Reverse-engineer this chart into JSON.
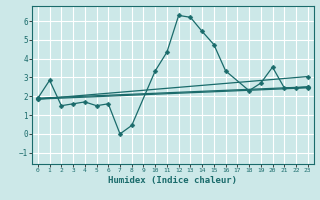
{
  "title": "",
  "xlabel": "Humidex (Indice chaleur)",
  "background_color": "#cce8e8",
  "grid_color": "#ffffff",
  "line_color": "#1a6b6b",
  "xlim": [
    -0.5,
    23.5
  ],
  "ylim": [
    -1.6,
    6.8
  ],
  "xticks": [
    0,
    1,
    2,
    3,
    4,
    5,
    6,
    7,
    8,
    9,
    10,
    11,
    12,
    13,
    14,
    15,
    16,
    17,
    18,
    19,
    20,
    21,
    22,
    23
  ],
  "yticks": [
    -1,
    0,
    1,
    2,
    3,
    4,
    5,
    6
  ],
  "series1_x": [
    0,
    1,
    2,
    3,
    4,
    5,
    6,
    7,
    8,
    10,
    11,
    12,
    13,
    14,
    15,
    16,
    18,
    19,
    20,
    21,
    22,
    23
  ],
  "series1_y": [
    1.9,
    2.85,
    1.5,
    1.6,
    1.7,
    1.5,
    1.6,
    0.0,
    0.45,
    3.35,
    4.35,
    6.3,
    6.2,
    5.45,
    4.75,
    3.35,
    2.3,
    2.7,
    3.55,
    2.45,
    2.45,
    2.5
  ],
  "series2_x": [
    0,
    23
  ],
  "series2_y": [
    1.9,
    2.5
  ],
  "series3_x": [
    0,
    23
  ],
  "series3_y": [
    1.85,
    2.45
  ],
  "series4_x": [
    0,
    23
  ],
  "series4_y": [
    1.85,
    3.05
  ],
  "markersize": 2.5,
  "linewidth": 0.9
}
